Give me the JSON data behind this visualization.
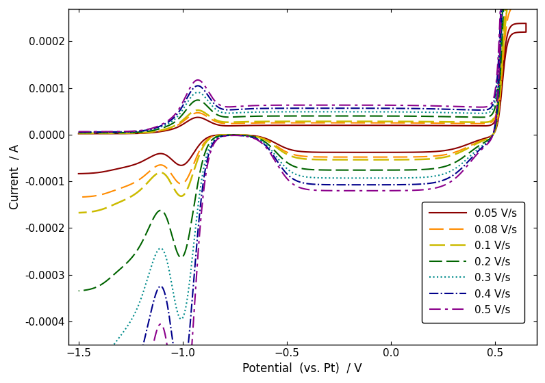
{
  "xlabel": "Potential  (vs. Pt)  / V",
  "ylabel": "Current  / A",
  "xlim": [
    -1.55,
    0.7
  ],
  "ylim": [
    -0.00045,
    0.00027
  ],
  "yticks": [
    -0.0004,
    -0.0003,
    -0.0002,
    -0.0001,
    0.0,
    0.0001,
    0.0002
  ],
  "xticks": [
    -1.5,
    -1.0,
    -0.5,
    0.0,
    0.5
  ],
  "scan_rates": [
    0.05,
    0.08,
    0.1,
    0.2,
    0.3,
    0.4,
    0.5
  ],
  "colors": [
    "#8B0000",
    "#FF8C00",
    "#CCBB00",
    "#006400",
    "#008B8B",
    "#00008B",
    "#8B008B"
  ],
  "labels": [
    "0.05 V/s",
    "0.08 V/s",
    "0.1 V/s",
    "0.2 V/s",
    "0.3 V/s",
    "0.4 V/s",
    "0.5 V/s"
  ],
  "background_color": "#ffffff",
  "font_size": 12,
  "tick_labelsize": 11
}
